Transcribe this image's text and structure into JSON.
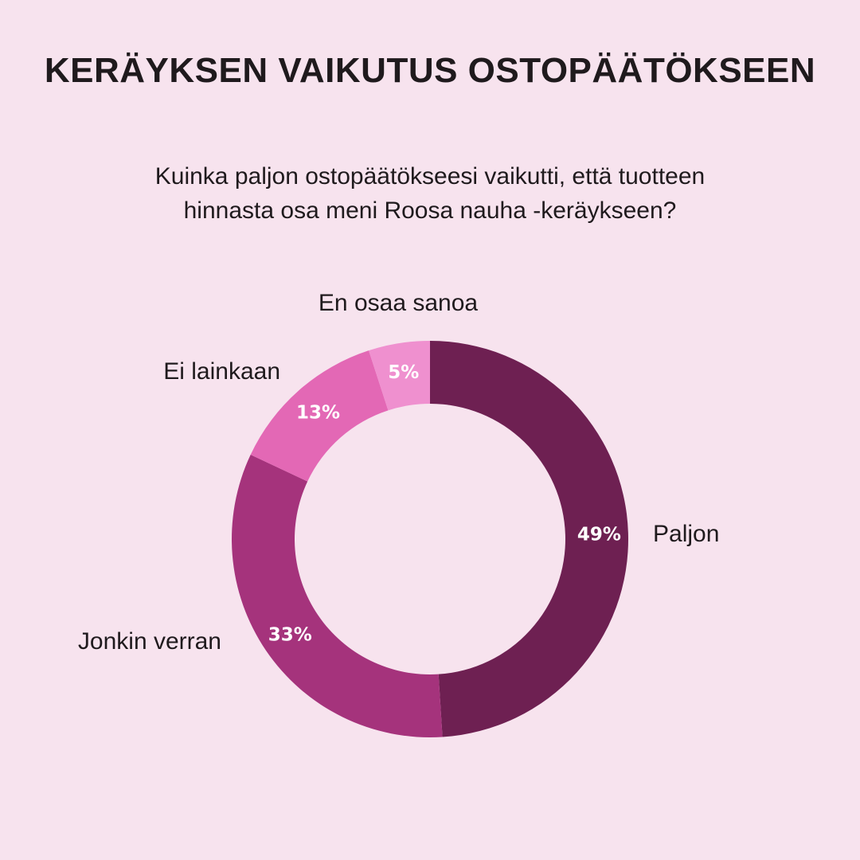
{
  "title": "KERÄYKSEN VAIKUTUS OSTOPÄÄTÖKSEEN",
  "subtitle_lines": [
    "Kuinka paljon ostopäätökseesi vaikutti, että tuotteen",
    "hinnasta osa meni Roosa nauha -keräykseen?"
  ],
  "colors": {
    "background": "#f7e3ee",
    "text": "#1f1a1d",
    "hole": "#f7e3ee"
  },
  "chart_data": {
    "type": "pie",
    "variant": "donut",
    "start": "top",
    "direction": "clockwise",
    "slices": [
      {
        "category": "Paljon",
        "value": 49,
        "value_label": "49%",
        "color": "#6e2052"
      },
      {
        "category": "Jonkin verran",
        "value": 33,
        "value_label": "33%",
        "color": "#a5337c"
      },
      {
        "category": "Ei lainkaan",
        "value": 13,
        "value_label": "13%",
        "color": "#e368b5"
      },
      {
        "category": "En osaa sanoa",
        "value": 5,
        "value_label": "5%",
        "color": "#ef90cf"
      }
    ]
  }
}
